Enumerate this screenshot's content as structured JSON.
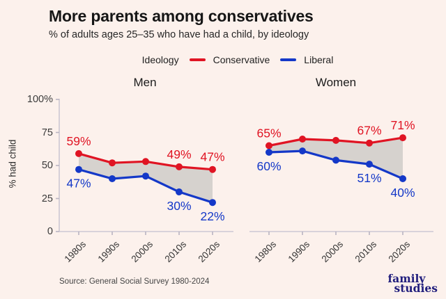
{
  "header": {
    "title": "More parents among conservatives",
    "subtitle": "% of adults ages 25–35 who have had a child, by ideology"
  },
  "legend": {
    "label": "Ideology",
    "items": [
      {
        "name": "Conservative",
        "color": "#e01423"
      },
      {
        "name": "Liberal",
        "color": "#1438c8"
      }
    ]
  },
  "chart_data": {
    "type": "line",
    "categories": [
      "1980s",
      "1990s",
      "2000s",
      "2010s",
      "2020s"
    ],
    "xlabel": "",
    "ylabel": "% had child",
    "ylim": [
      0,
      100
    ],
    "y_tick_values": [
      100,
      75,
      50,
      25,
      0
    ],
    "y_tick_labels": [
      "100%",
      "75",
      "50",
      "25",
      "0"
    ],
    "grid": false,
    "legend_position": "top",
    "band_color": "#d6d2ce",
    "axis_color": "#ccc8d4",
    "panels": [
      {
        "title": "Men",
        "series": [
          {
            "name": "Conservative",
            "color": "#e01423",
            "values": [
              59,
              52,
              53,
              49,
              47
            ],
            "labels": [
              "59%",
              "",
              "",
              "49%",
              "47%"
            ],
            "label_pos": "above"
          },
          {
            "name": "Liberal",
            "color": "#1438c8",
            "values": [
              47,
              40,
              42,
              30,
              22
            ],
            "labels": [
              "47%",
              "",
              "",
              "30%",
              "22%"
            ],
            "label_pos": "below"
          }
        ]
      },
      {
        "title": "Women",
        "series": [
          {
            "name": "Conservative",
            "color": "#e01423",
            "values": [
              65,
              70,
              69,
              67,
              71
            ],
            "labels": [
              "65%",
              "",
              "",
              "67%",
              "71%"
            ],
            "label_pos": "above"
          },
          {
            "name": "Liberal",
            "color": "#1438c8",
            "values": [
              60,
              61,
              54,
              51,
              40
            ],
            "labels": [
              "60%",
              "",
              "",
              "51%",
              "40%"
            ],
            "label_pos": "below"
          }
        ]
      }
    ]
  },
  "source": "Source: General Social Survey 1980-2024",
  "logo": {
    "line1": "family",
    "line2": "studies",
    "color": "#211e7d"
  }
}
